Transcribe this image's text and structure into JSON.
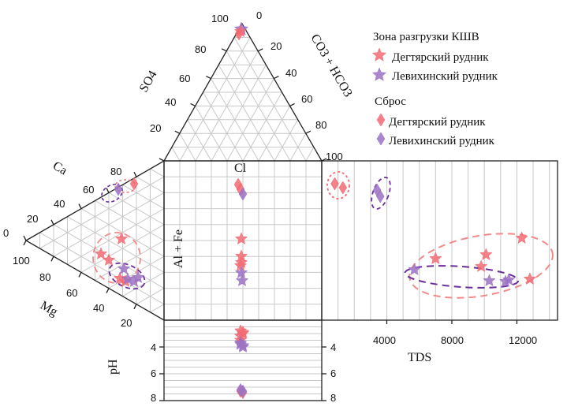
{
  "chart_data": {
    "type": "piper-durov",
    "anion_triangle": {
      "axes": {
        "so4": "SO4",
        "co3hco3": "CO3 + HCO3",
        "cl": "Cl"
      },
      "so4_ticks": [
        "100",
        "80",
        "60",
        "40",
        "20"
      ],
      "co3_ticks": [
        "0",
        "20",
        "40",
        "60",
        "80",
        "100"
      ]
    },
    "cation_triangle": {
      "axes": {
        "ca": "Ca",
        "mg": "Mg",
        "alfe": "Al + Fe"
      },
      "ca_ticks": [
        "80",
        "60",
        "40",
        "20",
        "0"
      ],
      "mg_ticks": [
        "100",
        "80",
        "60",
        "40",
        "20"
      ]
    },
    "ph_panel": {
      "label": "pH",
      "ticks": [
        "4",
        "6",
        "8"
      ],
      "range": [
        2,
        8
      ]
    },
    "tds_panel": {
      "label": "TDS",
      "ticks": [
        "4000",
        "8000",
        "12000"
      ],
      "range": [
        0,
        14500
      ]
    },
    "legend": {
      "group1_title": "Зона разгрузки КШВ",
      "group1_items": [
        "Дегтярский рудник",
        "Левихинский рудник"
      ],
      "group2_title": "Сброс",
      "group2_items": [
        "Дегтярский рудник",
        "Левихинский рудник"
      ]
    },
    "colors": {
      "degtyarsky": "#f26b73",
      "levikhinsky": "#9b72c4",
      "ellipse_red": "#f28a8a",
      "ellipse_purple": "#6a2d9c"
    },
    "series": [
      {
        "name": "Зона разгрузки КШВ — Дегтярский рудник",
        "marker": "star",
        "color": "degtyarsky",
        "tds": [
          7000,
          9800,
          10100,
          12300,
          12800
        ],
        "ph": [
          2.8,
          3.0,
          3.2,
          2.9,
          3.5
        ]
      },
      {
        "name": "Зона разгрузки КШВ — Левихинский рудник",
        "marker": "star",
        "color": "levikhinsky",
        "tds": [
          5700,
          10300,
          11300,
          11500
        ],
        "ph": [
          3.8,
          4.0,
          3.7,
          3.9
        ]
      },
      {
        "name": "Сброс — Дегтярский рудник",
        "marker": "diamond",
        "color": "degtyarsky",
        "tds": [
          800,
          1300
        ],
        "ph": [
          7.3,
          7.4
        ]
      },
      {
        "name": "Сброс — Левихинский рудник",
        "marker": "diamond",
        "color": "levikhinsky",
        "tds": [
          3400,
          3600
        ],
        "ph": [
          7.2,
          7.3
        ]
      }
    ]
  }
}
